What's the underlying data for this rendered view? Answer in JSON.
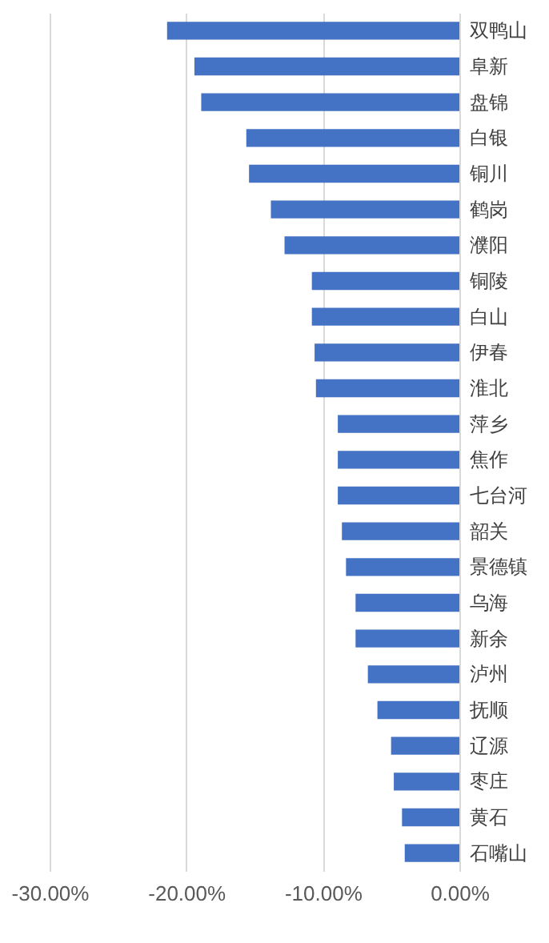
{
  "chart_data": {
    "type": "bar",
    "orientation": "horizontal",
    "categories": [
      "双鸭山",
      "阜新",
      "盘锦",
      "白银",
      "铜川",
      "鹤岗",
      "濮阳",
      "铜陵",
      "白山",
      "伊春",
      "淮北",
      "萍乡",
      "焦作",
      "七台河",
      "韶关",
      "景德镇",
      "乌海",
      "新余",
      "泸州",
      "抚顺",
      "辽源",
      "枣庄",
      "黄石",
      "石嘴山"
    ],
    "values": [
      -21.4,
      -19.4,
      -18.9,
      -15.6,
      -15.4,
      -13.8,
      -12.8,
      -10.8,
      -10.8,
      -10.6,
      -10.5,
      -8.9,
      -8.9,
      -8.9,
      -8.6,
      -8.3,
      -7.6,
      -7.6,
      -6.7,
      -6.0,
      -5.0,
      -4.8,
      -4.2,
      -4.0
    ],
    "color": "#4472c4",
    "xlim": [
      -30,
      0
    ],
    "xticks": [
      {
        "value": -30,
        "label": "-30.00%"
      },
      {
        "value": -20,
        "label": "-20.00%"
      },
      {
        "value": -10,
        "label": "-10.00%"
      },
      {
        "value": 0,
        "label": "0.00%"
      }
    ],
    "grid": "x"
  }
}
